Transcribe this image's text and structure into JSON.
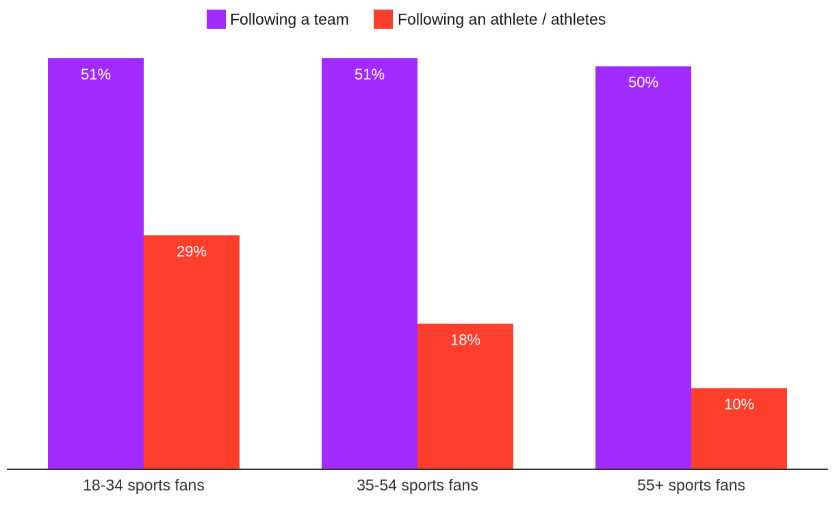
{
  "colors": {
    "team": "#A12BFF",
    "athlete": "#FF3E2C",
    "axis": "#333333"
  },
  "chart_data": {
    "type": "bar",
    "title": "",
    "xlabel": "",
    "ylabel": "",
    "categories": [
      "18-34 sports fans",
      "35-54 sports fans",
      "55+ sports fans"
    ],
    "series": [
      {
        "name": "Following a team",
        "values": [
          51,
          51,
          50
        ],
        "labels": [
          "51%",
          "51%",
          "50%"
        ]
      },
      {
        "name": "Following an athlete / athletes",
        "values": [
          29,
          18,
          10
        ],
        "labels": [
          "29%",
          "18%",
          "10%"
        ]
      }
    ],
    "ylim": [
      0,
      51
    ],
    "grid": false,
    "legend": "top-center"
  }
}
